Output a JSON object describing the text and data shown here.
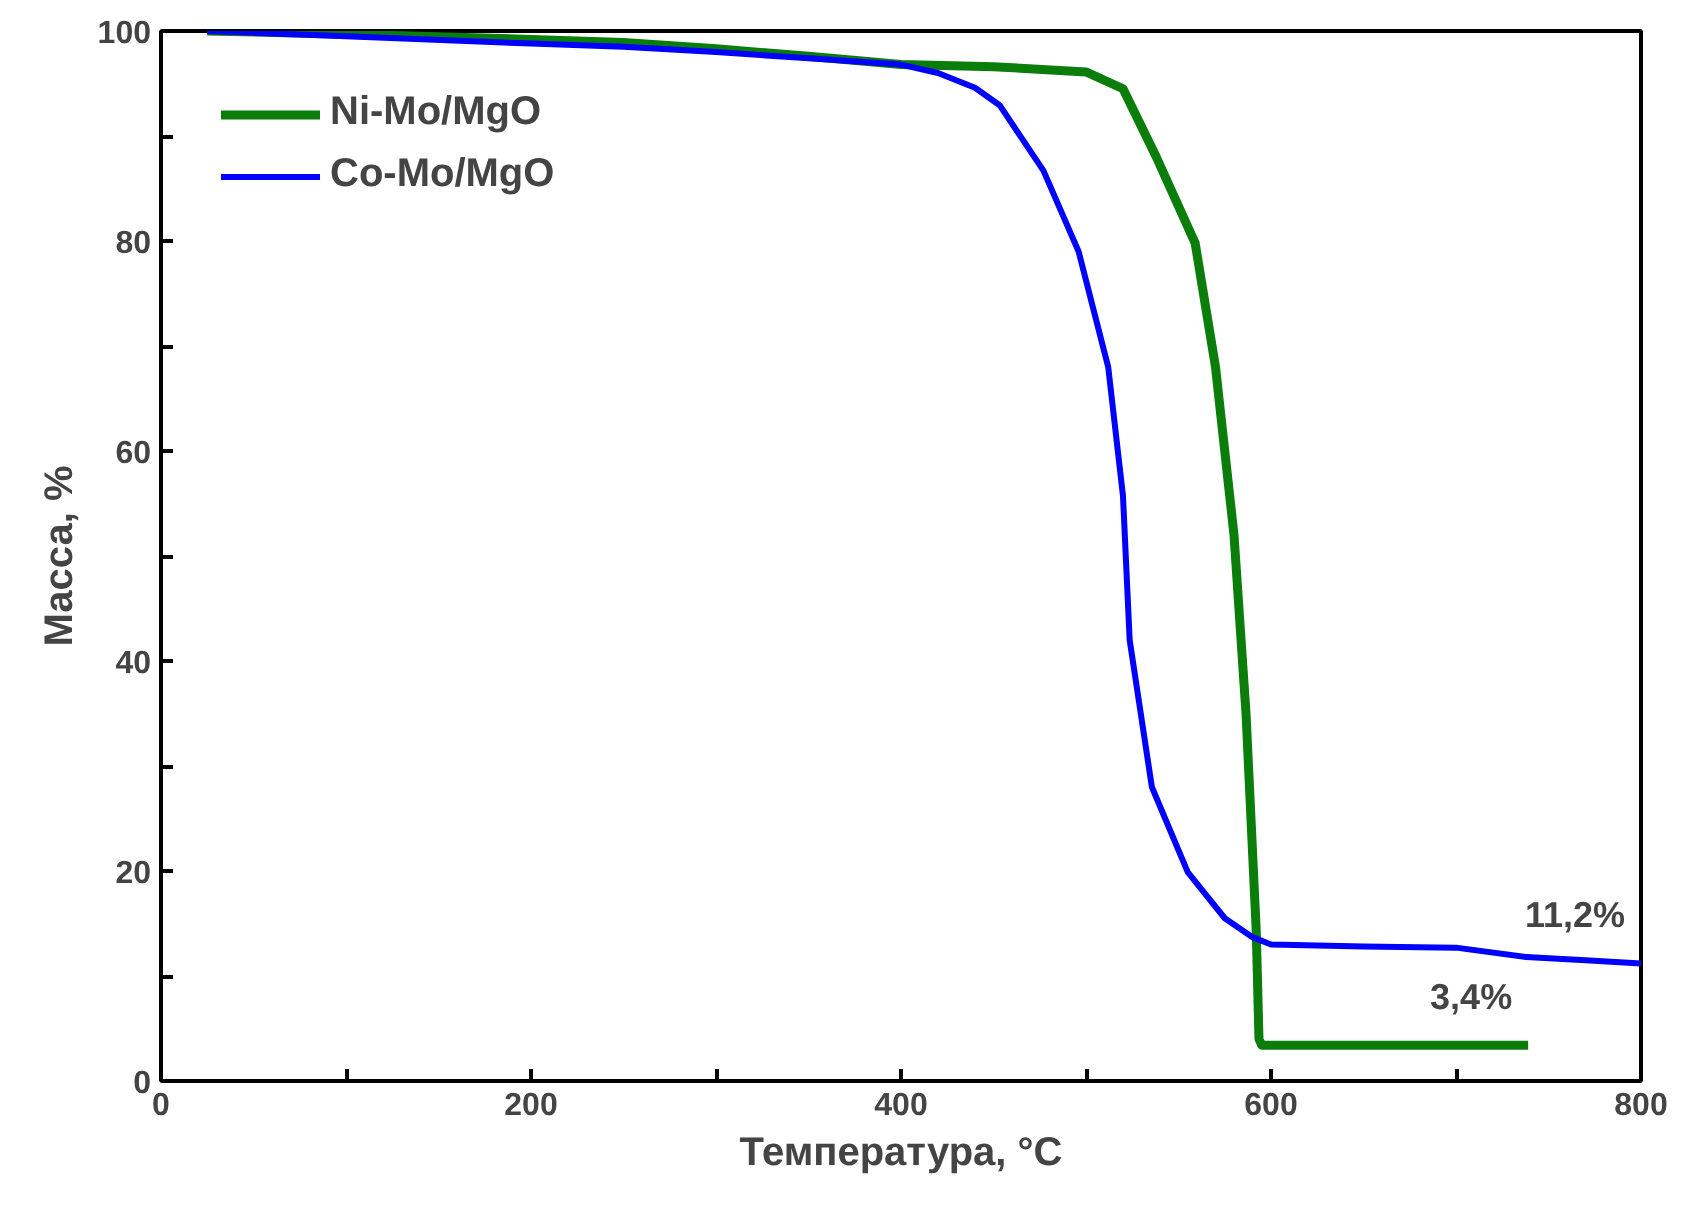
{
  "chart_data": {
    "type": "line",
    "xlabel": "Температура, °C",
    "ylabel": "Масса, %",
    "xlim": [
      0,
      800
    ],
    "ylim": [
      0,
      100
    ],
    "xticks": [
      0,
      {
        "value": 100,
        "label": null
      },
      200,
      {
        "value": 300,
        "label": null
      },
      400,
      {
        "value": 500,
        "label": null
      },
      600,
      {
        "value": 700,
        "label": null
      },
      800
    ],
    "yticks": [
      0,
      {
        "value": 10,
        "label": null
      },
      20,
      {
        "value": 30,
        "label": null
      },
      40,
      {
        "value": 50,
        "label": null
      },
      60,
      {
        "value": 70,
        "label": null
      },
      80,
      {
        "value": 90,
        "label": null
      },
      100
    ],
    "grid": false,
    "legend": "top left",
    "marker": "none",
    "line_style": "solid",
    "series": [
      {
        "name": "Ni-Mo/MgO",
        "color": "#0a7d0a",
        "x": [
          25,
          100,
          200,
          250,
          300,
          350,
          400,
          450,
          500,
          520,
          538,
          559,
          570,
          580,
          586.5,
          592,
          593.5,
          595,
          600,
          650,
          700,
          739
        ],
        "values": [
          100,
          99.7,
          99.2,
          98.9,
          98.3,
          97.6,
          96.8,
          96.6,
          96.1,
          94.5,
          88,
          79.8,
          68,
          52,
          35,
          14.4,
          4,
          3.4,
          3.4,
          3.4,
          3.4,
          3.4
        ]
      },
      {
        "name": "Co-Mo/MgO",
        "color": "#0000ff",
        "x": [
          25,
          100,
          200,
          250,
          300,
          350,
          400,
          420,
          440,
          453.5,
          477,
          496,
          512,
          520,
          523.6,
          535.6,
          555,
          575,
          590,
          600,
          650,
          700,
          738,
          770,
          800
        ],
        "values": [
          100,
          99.5,
          98.8,
          98.5,
          98,
          97.4,
          96.8,
          96,
          94.6,
          92.9,
          86.7,
          79,
          68,
          55.7,
          42,
          28,
          19.9,
          15.5,
          13.7,
          13,
          12.8,
          12.7,
          11.8,
          11.5,
          11.2
        ]
      }
    ],
    "annotations": [
      {
        "text": "11,2%",
        "x": 800,
        "y": 11.2
      },
      {
        "text": "3,4%",
        "x": 739,
        "y": 3.4
      }
    ]
  }
}
